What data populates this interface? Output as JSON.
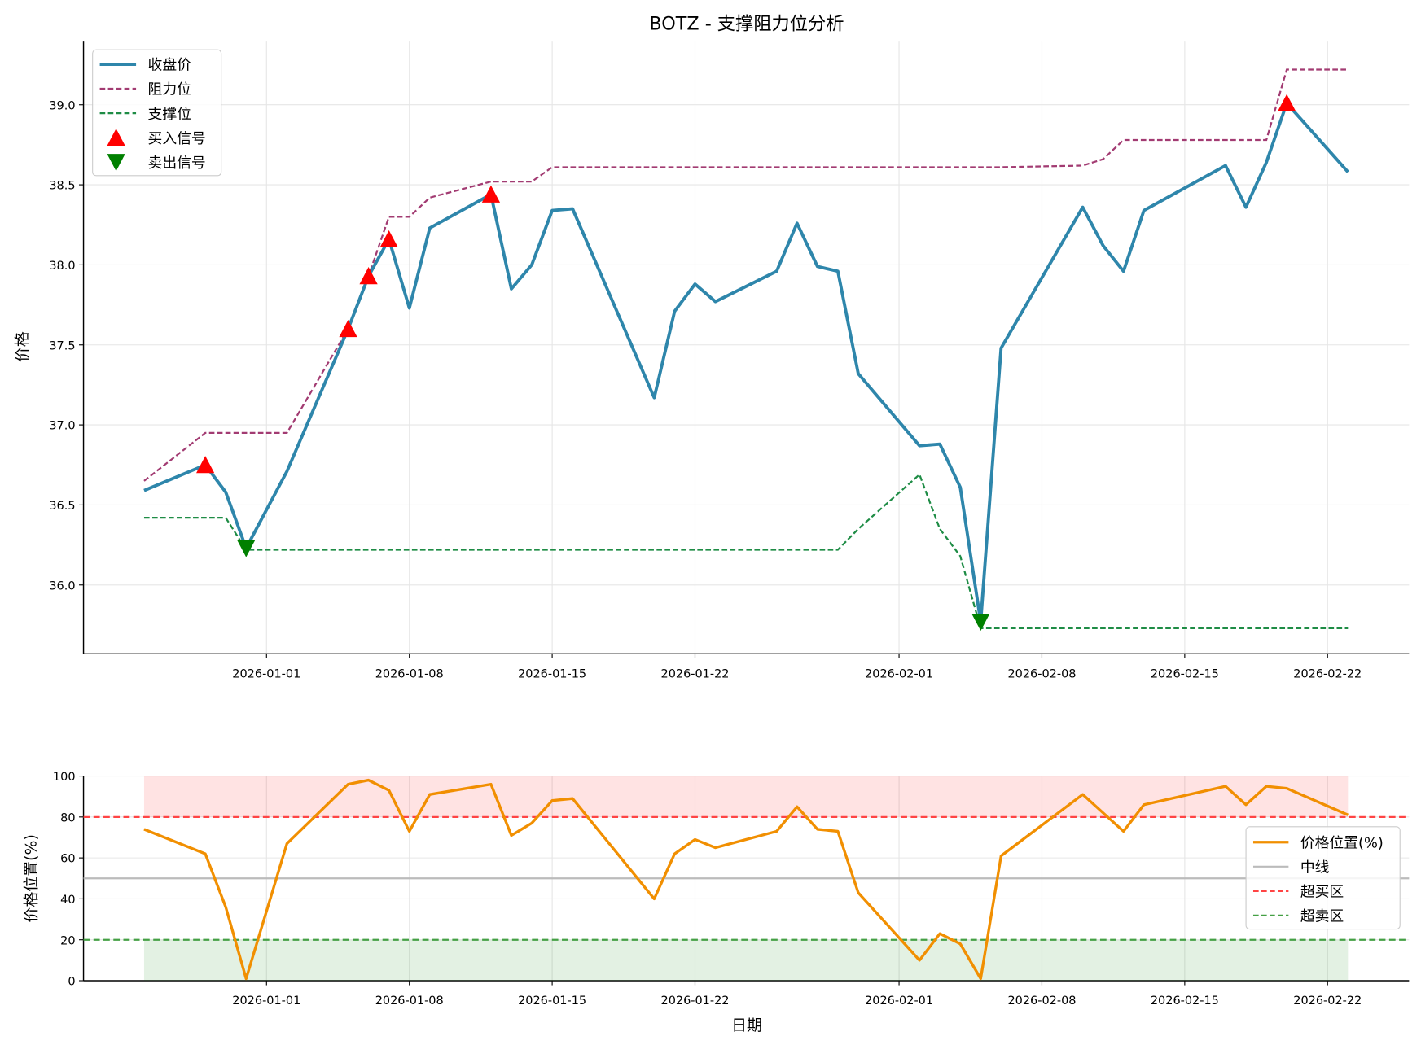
{
  "chart_data": [
    {
      "type": "line",
      "title": "BOTZ - 支撑阻力位分析",
      "ylabel": "价格",
      "ylim": [
        35.57,
        39.4
      ],
      "yticks": [
        "36.0",
        "36.5",
        "37.0",
        "37.5",
        "38.0",
        "38.5",
        "39.0"
      ],
      "xticks": [
        "2026-01-01",
        "2026-01-08",
        "2026-01-15",
        "2026-01-22",
        "2026-02-01",
        "2026-02-08",
        "2026-02-15",
        "2026-02-22"
      ],
      "x": [
        "2025-12-26",
        "2025-12-29",
        "2025-12-30",
        "2025-12-31",
        "2026-01-02",
        "2026-01-05",
        "2026-01-06",
        "2026-01-07",
        "2026-01-08",
        "2026-01-09",
        "2026-01-12",
        "2026-01-13",
        "2026-01-14",
        "2026-01-15",
        "2026-01-16",
        "2026-01-20",
        "2026-01-21",
        "2026-01-22",
        "2026-01-23",
        "2026-01-26",
        "2026-01-27",
        "2026-01-28",
        "2026-01-29",
        "2026-01-30",
        "2026-02-02",
        "2026-02-03",
        "2026-02-04",
        "2026-02-05",
        "2026-02-06",
        "2026-02-10",
        "2026-02-11",
        "2026-02-12",
        "2026-02-13",
        "2026-02-17",
        "2026-02-18",
        "2026-02-19",
        "2026-02-20",
        "2026-02-23"
      ],
      "series": [
        {
          "name": "收盘价",
          "color": "#2e86ab",
          "values": [
            36.59,
            36.75,
            36.58,
            36.23,
            36.71,
            37.6,
            37.93,
            38.16,
            37.73,
            38.23,
            38.44,
            37.85,
            38.0,
            38.34,
            38.35,
            37.17,
            37.71,
            37.88,
            37.77,
            37.96,
            38.26,
            37.99,
            37.96,
            37.32,
            36.87,
            36.88,
            36.61,
            35.77,
            37.48,
            38.36,
            38.12,
            37.96,
            38.34,
            38.62,
            38.36,
            38.64,
            39.01,
            38.58
          ]
        },
        {
          "name": "阻力位",
          "color": "#a23b72",
          "values": [
            36.65,
            36.95,
            36.95,
            36.95,
            36.95,
            37.6,
            37.93,
            38.3,
            38.3,
            38.42,
            38.52,
            38.52,
            38.52,
            38.61,
            38.61,
            38.61,
            38.61,
            38.61,
            38.61,
            38.61,
            38.61,
            38.61,
            38.61,
            38.61,
            38.61,
            38.61,
            38.61,
            38.61,
            38.61,
            38.62,
            38.66,
            38.78,
            38.78,
            38.78,
            38.78,
            38.78,
            39.22,
            39.22
          ]
        },
        {
          "name": "支撑位",
          "color": "#1e8c45",
          "values": [
            36.42,
            36.42,
            36.42,
            36.22,
            36.22,
            36.22,
            36.22,
            36.22,
            36.22,
            36.22,
            36.22,
            36.22,
            36.22,
            36.22,
            36.22,
            36.22,
            36.22,
            36.22,
            36.22,
            36.22,
            36.22,
            36.22,
            36.22,
            36.35,
            36.69,
            36.35,
            36.18,
            35.73,
            35.73,
            35.73,
            35.73,
            35.73,
            35.73,
            35.73,
            35.73,
            35.73,
            35.73,
            35.73
          ]
        }
      ],
      "buy_signals": {
        "name": "买入信号",
        "color": "#ff0000",
        "x": [
          "2025-12-29",
          "2026-01-05",
          "2026-01-06",
          "2026-01-07",
          "2026-01-12",
          "2026-02-20"
        ]
      },
      "sell_signals": {
        "name": "卖出信号",
        "color": "#008000",
        "x": [
          "2025-12-31",
          "2026-02-05"
        ]
      },
      "legend": "top-left"
    },
    {
      "type": "line",
      "xlabel": "日期",
      "ylabel": "价格位置(%)",
      "ylim": [
        0,
        100
      ],
      "yticks": [
        "0",
        "20",
        "40",
        "60",
        "80",
        "100"
      ],
      "series": [
        {
          "name": "价格位置(%)",
          "color": "#f18f01",
          "values": [
            74,
            62,
            36,
            1,
            67,
            96,
            98,
            93,
            73,
            91,
            96,
            71,
            77,
            88,
            89,
            40,
            62,
            69,
            65,
            73,
            85,
            74,
            73,
            43,
            10,
            23,
            18,
            1,
            61,
            91,
            82,
            73,
            86,
            95,
            86,
            95,
            94,
            81
          ]
        },
        {
          "name": "中线",
          "color": "#bbbbbb",
          "value": 50
        },
        {
          "name": "超买区",
          "color": "#ff4444",
          "value": 80
        },
        {
          "name": "超卖区",
          "color": "#44a044",
          "value": 20
        }
      ],
      "legend": "center-right"
    }
  ]
}
